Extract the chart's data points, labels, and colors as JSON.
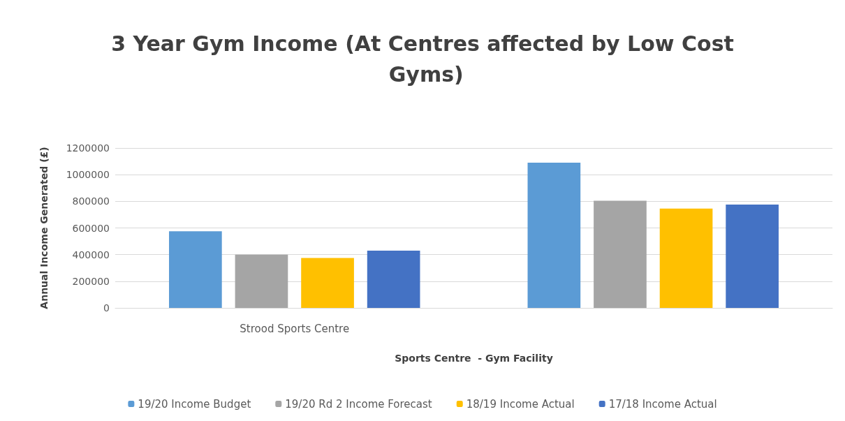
{
  "chart_data": {
    "type": "bar",
    "title": "3 Year Gym Income (At Centres affected by Low Cost Gyms)",
    "xlabel": "Sports Centre  - Gym Facility",
    "ylabel": "Annual Income Generated (£)",
    "categories": [
      "Strood Sports Centre",
      null
    ],
    "series": [
      {
        "name": "19/20 Income Budget",
        "color": "#5b9bd5",
        "values": [
          575000,
          1090000
        ]
      },
      {
        "name": "19/20 Rd 2 Income Forecast",
        "color": "#a5a5a5",
        "values": [
          400000,
          805000
        ]
      },
      {
        "name": "18/19 Income Actual",
        "color": "#ffc000",
        "values": [
          375000,
          745000
        ]
      },
      {
        "name": "17/18 Income Actual",
        "color": "#4472c4",
        "values": [
          430000,
          775000
        ]
      }
    ],
    "ylim": [
      0,
      1200000
    ],
    "yticks": [
      0,
      200000,
      400000,
      600000,
      800000,
      1000000,
      1200000
    ],
    "grid": "y",
    "legend": "bottom"
  }
}
